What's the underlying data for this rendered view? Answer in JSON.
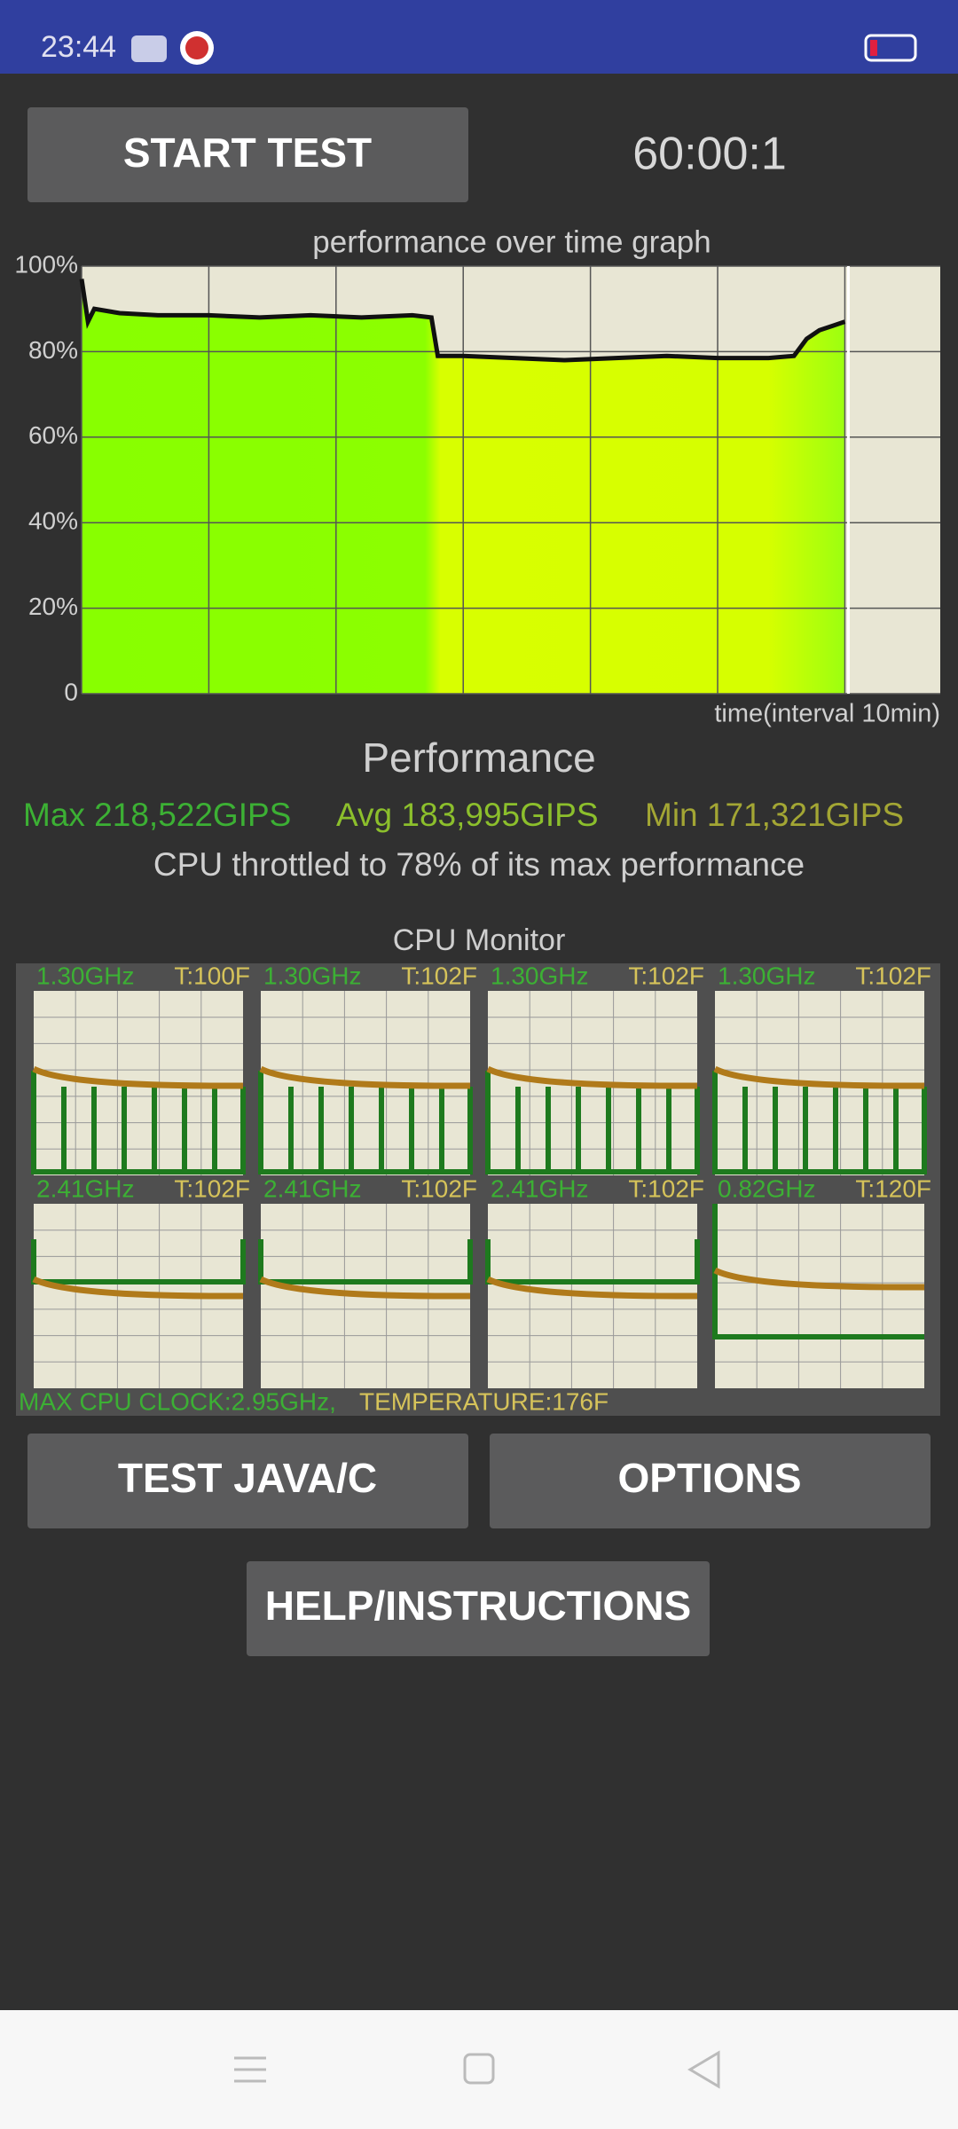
{
  "status_bar": {
    "time": "23:44"
  },
  "controls": {
    "start_button": "START TEST",
    "timer": "60:00:1"
  },
  "chart_data": {
    "type": "line",
    "title": "performance over time graph",
    "x_label": "time(interval 10min)",
    "x": [
      0,
      0.5,
      1,
      3,
      6,
      10,
      14,
      18,
      22,
      26,
      27.5,
      28,
      30,
      34,
      38,
      42,
      46,
      50,
      54,
      56,
      57,
      58,
      59,
      60
    ],
    "values": [
      97,
      87,
      90,
      89,
      88.5,
      88.5,
      88,
      88.5,
      88,
      88.5,
      88,
      79,
      79,
      78.5,
      78,
      78.5,
      79,
      78.5,
      78.5,
      79,
      83,
      85,
      86,
      87
    ],
    "color": "#111111",
    "xlim": [
      0,
      67.5
    ],
    "xticks": [
      0,
      10,
      20,
      30,
      40,
      50,
      60
    ],
    "ylim": [
      0,
      100
    ],
    "yticks": [
      0,
      {
        "value": 20,
        "label": "20%"
      },
      {
        "value": 40,
        "label": "40%"
      },
      {
        "value": 60,
        "label": "60%"
      },
      {
        "value": 80,
        "label": "80%"
      },
      {
        "value": 100,
        "label": "100%"
      }
    ],
    "grid": true
  },
  "performance": {
    "heading": "Performance",
    "max": "Max 218,522GIPS",
    "avg": "Avg 183,995GIPS",
    "min": "Min 171,321GIPS",
    "throttle": "CPU throttled to 78% of its max performance"
  },
  "cpu_monitor": {
    "title": "CPU Monitor",
    "cores": [
      {
        "freq": "1.30GHz",
        "temp": "T:100F"
      },
      {
        "freq": "1.30GHz",
        "temp": "T:102F"
      },
      {
        "freq": "1.30GHz",
        "temp": "T:102F"
      },
      {
        "freq": "1.30GHz",
        "temp": "T:102F"
      },
      {
        "freq": "2.41GHz",
        "temp": "T:102F"
      },
      {
        "freq": "2.41GHz",
        "temp": "T:102F"
      },
      {
        "freq": "2.41GHz",
        "temp": "T:102F"
      },
      {
        "freq": "0.82GHz",
        "temp": "T:120F"
      }
    ],
    "max_clock": "MAX CPU CLOCK:2.95GHz,",
    "temperature": "TEMPERATURE:176F"
  },
  "buttons": {
    "test": "TEST JAVA/C",
    "options": "OPTIONS",
    "help": "HELP/INSTRUCTIONS"
  }
}
